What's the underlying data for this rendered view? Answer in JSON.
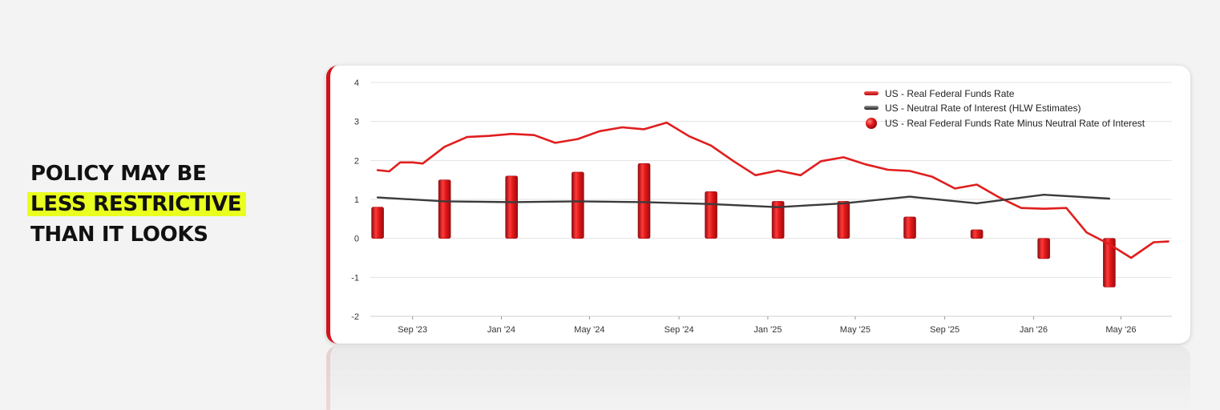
{
  "headline": {
    "line1": "POLICY MAY BE",
    "line2": "LESS RESTRICTIVE",
    "line3": "THAN IT LOOKS"
  },
  "colors": {
    "accent": "#d3121a",
    "highlight": "#e9ff1f",
    "neutral_line": "#3b3b3b"
  },
  "chart_data": {
    "type": "line",
    "legend_position": "top-right",
    "grid": true,
    "ylim": [
      -2,
      4
    ],
    "yticks": [
      -2,
      -1,
      0,
      1,
      2,
      3,
      4
    ],
    "xlim": [
      "2023-07-05",
      "2026-07-10"
    ],
    "xticks": [
      {
        "label": "Sep '23",
        "date": "2023-09-01"
      },
      {
        "label": "Jan '24",
        "date": "2024-01-01"
      },
      {
        "label": "May '24",
        "date": "2024-05-01"
      },
      {
        "label": "Sep '24",
        "date": "2024-09-01"
      },
      {
        "label": "Jan '25",
        "date": "2025-01-01"
      },
      {
        "label": "May '25",
        "date": "2025-05-01"
      },
      {
        "label": "Sep '25",
        "date": "2025-09-01"
      },
      {
        "label": "Jan '26",
        "date": "2026-01-01"
      },
      {
        "label": "May '26",
        "date": "2026-05-01"
      }
    ],
    "series": [
      {
        "name": "US - Real Federal Funds Rate",
        "kind": "line",
        "color": "#e01e1e",
        "points": [
          [
            "2023-07-15",
            1.75
          ],
          [
            "2023-07-31",
            1.72
          ],
          [
            "2023-08-15",
            1.95
          ],
          [
            "2023-09-01",
            1.95
          ],
          [
            "2023-09-15",
            1.92
          ],
          [
            "2023-10-15",
            2.35
          ],
          [
            "2023-11-15",
            2.6
          ],
          [
            "2023-12-15",
            2.63
          ],
          [
            "2024-01-15",
            2.68
          ],
          [
            "2024-02-15",
            2.65
          ],
          [
            "2024-03-15",
            2.45
          ],
          [
            "2024-04-15",
            2.55
          ],
          [
            "2024-05-15",
            2.75
          ],
          [
            "2024-06-15",
            2.85
          ],
          [
            "2024-07-15",
            2.8
          ],
          [
            "2024-08-15",
            2.97
          ],
          [
            "2024-09-15",
            2.62
          ],
          [
            "2024-10-15",
            2.38
          ],
          [
            "2024-11-15",
            1.98
          ],
          [
            "2024-12-15",
            1.62
          ],
          [
            "2025-01-15",
            1.74
          ],
          [
            "2025-02-15",
            1.62
          ],
          [
            "2025-03-15",
            1.98
          ],
          [
            "2025-04-15",
            2.08
          ],
          [
            "2025-05-15",
            1.9
          ],
          [
            "2025-06-15",
            1.76
          ],
          [
            "2025-07-15",
            1.73
          ],
          [
            "2025-08-15",
            1.58
          ],
          [
            "2025-09-15",
            1.28
          ],
          [
            "2025-10-15",
            1.38
          ],
          [
            "2025-11-15",
            1.05
          ],
          [
            "2025-12-15",
            0.78
          ],
          [
            "2026-01-15",
            0.76
          ],
          [
            "2026-02-15",
            0.78
          ],
          [
            "2026-03-15",
            0.15
          ],
          [
            "2026-04-15",
            -0.15
          ],
          [
            "2026-05-15",
            -0.5
          ],
          [
            "2026-06-15",
            -0.1
          ],
          [
            "2026-07-05",
            -0.08
          ]
        ]
      },
      {
        "name": "US - Neutral Rate of Interest (HLW Estimates)",
        "kind": "line",
        "color": "#3b3b3b",
        "points": [
          [
            "2023-07-15",
            1.05
          ],
          [
            "2023-10-15",
            0.95
          ],
          [
            "2024-01-15",
            0.93
          ],
          [
            "2024-04-15",
            0.95
          ],
          [
            "2024-07-15",
            0.93
          ],
          [
            "2024-10-15",
            0.88
          ],
          [
            "2025-01-15",
            0.8
          ],
          [
            "2025-04-15",
            0.9
          ],
          [
            "2025-07-15",
            1.07
          ],
          [
            "2025-10-15",
            0.9
          ],
          [
            "2026-01-15",
            1.12
          ],
          [
            "2026-04-15",
            1.02
          ]
        ]
      },
      {
        "name": "US - Real Federal Funds Rate Minus Neutral Rate of Interest",
        "kind": "bar",
        "color": "#d3121a",
        "points": [
          [
            "2023-07-15",
            0.8
          ],
          [
            "2023-10-15",
            1.5
          ],
          [
            "2024-01-15",
            1.6
          ],
          [
            "2024-04-15",
            1.7
          ],
          [
            "2024-07-15",
            1.92
          ],
          [
            "2024-10-15",
            1.2
          ],
          [
            "2025-01-15",
            0.95
          ],
          [
            "2025-04-15",
            0.95
          ],
          [
            "2025-07-15",
            0.55
          ],
          [
            "2025-10-15",
            0.22
          ],
          [
            "2026-01-15",
            -0.52
          ],
          [
            "2026-04-15",
            -1.25
          ]
        ]
      }
    ]
  }
}
